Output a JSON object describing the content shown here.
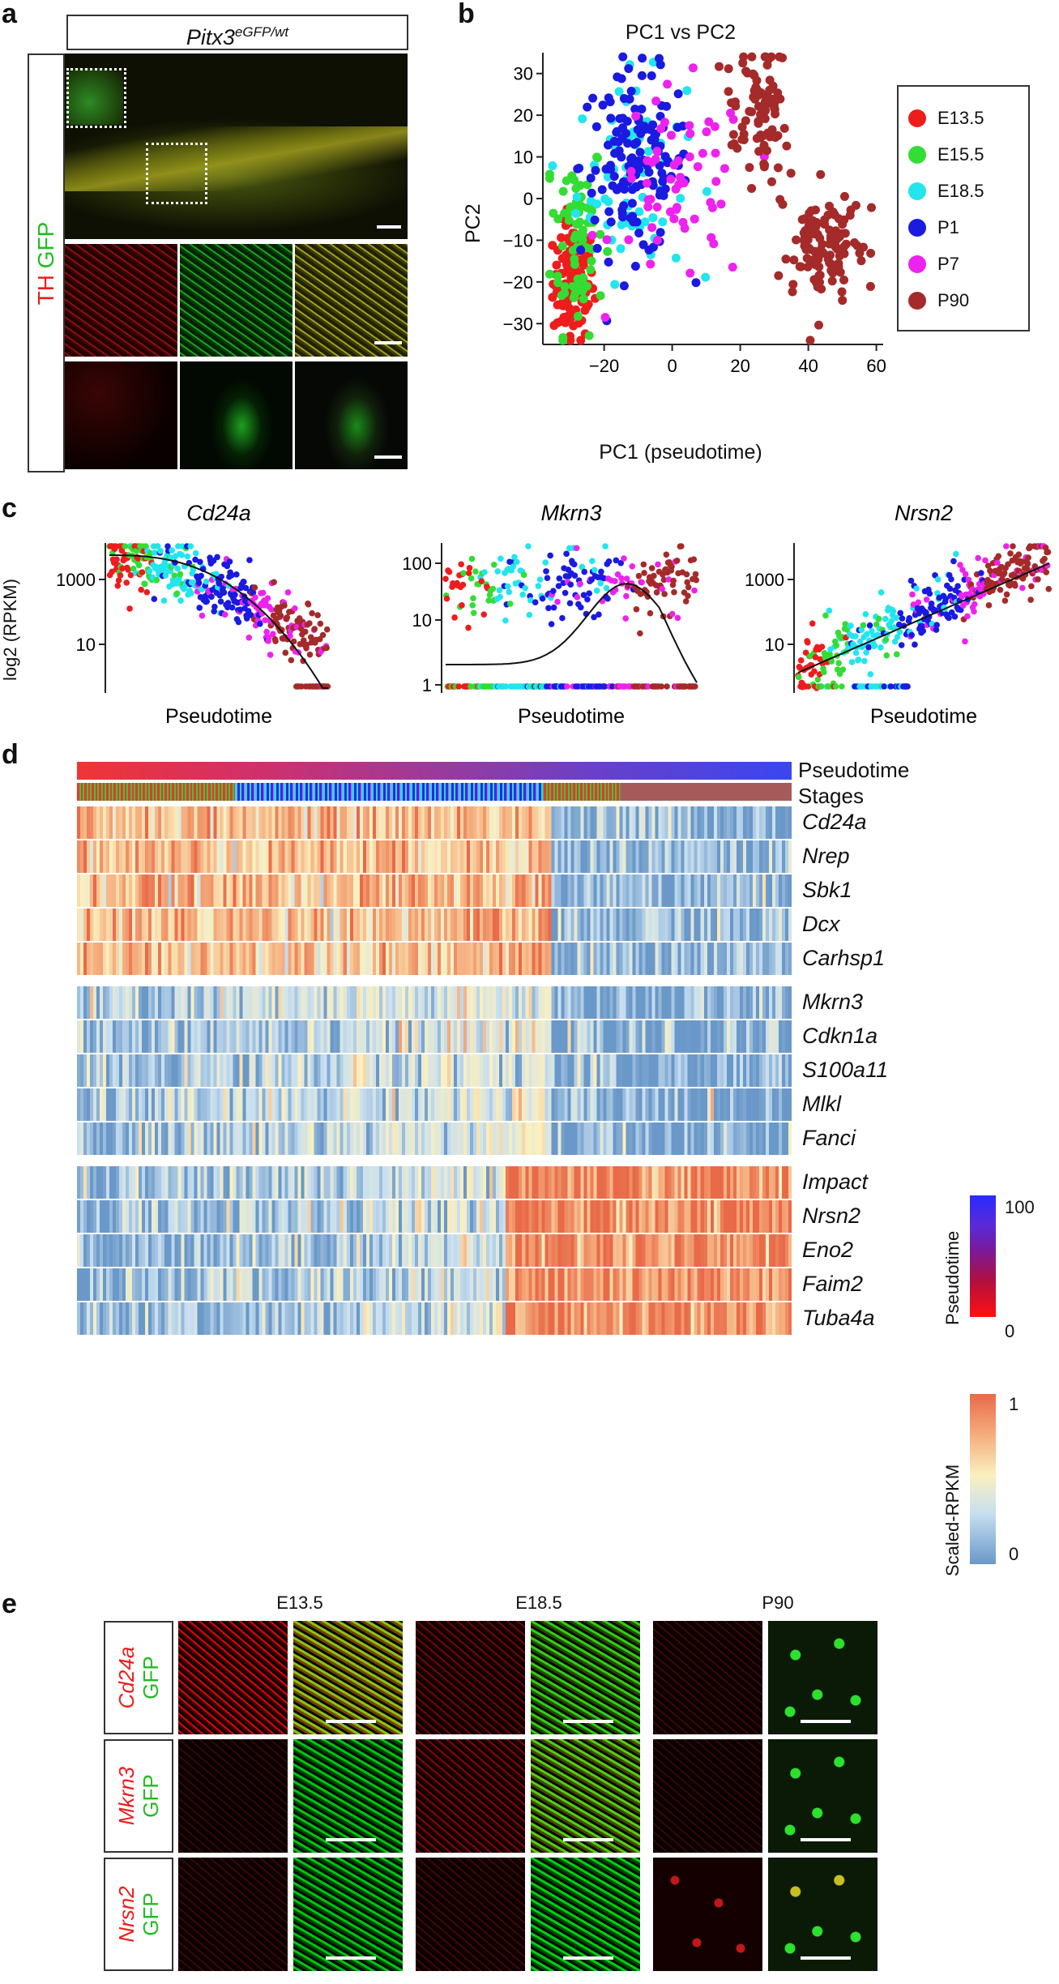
{
  "panel_letters": {
    "a": "a",
    "b": "b",
    "c": "c",
    "d": "d",
    "e": "e"
  },
  "panel_a": {
    "title_main": "Pitx3",
    "title_sup": "eGFP/wt",
    "side_th": "TH",
    "side_gfp": "GFP"
  },
  "panel_b": {
    "title": "PC1 vs PC2",
    "xlabel": "PC1 (pseudotime)",
    "ylabel": "PC2",
    "xticks": [
      "−20",
      "0",
      "20",
      "40",
      "60"
    ],
    "yticks": [
      "30",
      "20",
      "10",
      "0",
      "−10",
      "−20",
      "−30"
    ],
    "legend": [
      {
        "name": "E13.5",
        "color": "#ee1c1c"
      },
      {
        "name": "E15.5",
        "color": "#33dd33"
      },
      {
        "name": "E18.5",
        "color": "#22e5ee"
      },
      {
        "name": "P1",
        "color": "#1a1ae0"
      },
      {
        "name": "P7",
        "color": "#ee22ee"
      },
      {
        "name": "P90",
        "color": "#a52a2a"
      }
    ]
  },
  "panel_c": {
    "ylabel": "log2 (RPKM)",
    "plots": [
      {
        "gene": "Cd24a",
        "xlabel": "Pseudotime",
        "yticks": [
          "1000",
          "10"
        ]
      },
      {
        "gene": "Mkrn3",
        "xlabel": "Pseudotime",
        "yticks": [
          "100",
          "10",
          "1"
        ]
      },
      {
        "gene": "Nrsn2",
        "xlabel": "Pseudotime",
        "yticks": [
          "1000",
          "10"
        ]
      }
    ]
  },
  "panel_d": {
    "bar_pseudotime": "Pseudotime",
    "bar_stages": "Stages",
    "genes": [
      "Cd24a",
      "Nrep",
      "Sbk1",
      "Dcx",
      "Carhsp1",
      "Mkrn3",
      "Cdkn1a",
      "S100a11",
      "Mlkl",
      "Fanci",
      "Impact",
      "Nrsn2",
      "Eno2",
      "Faim2",
      "Tuba4a"
    ],
    "legend_pseudotime": {
      "label": "Pseudotime",
      "max": "100",
      "min": "0"
    },
    "legend_scaled": {
      "label": "Scaled-RPKM",
      "max": "1",
      "min": "0"
    }
  },
  "panel_e": {
    "columns": [
      "E13.5",
      "E18.5",
      "P90"
    ],
    "rows": [
      {
        "gene": "Cd24a",
        "marker": "GFP"
      },
      {
        "gene": "Mkrn3",
        "marker": "GFP"
      },
      {
        "gene": "Nrsn2",
        "marker": "GFP"
      }
    ]
  },
  "chart_data": [
    {
      "type": "scatter",
      "title": "PC1 vs PC2",
      "xlabel": "PC1 (pseudotime)",
      "ylabel": "PC2",
      "xlim": [
        -38,
        62
      ],
      "ylim": [
        -35,
        35
      ],
      "series": [
        {
          "name": "E13.5",
          "color": "#ee1c1c",
          "cluster": {
            "cx": -29,
            "cy": -20,
            "sx": 3,
            "sy": 7
          }
        },
        {
          "name": "E15.5",
          "color": "#33dd33",
          "cluster": {
            "cx": -28,
            "cy": -8,
            "sx": 4,
            "sy": 12
          }
        },
        {
          "name": "E18.5",
          "color": "#22e5ee",
          "cluster": {
            "cx": -12,
            "cy": 5,
            "sx": 8,
            "sy": 12
          }
        },
        {
          "name": "P1",
          "color": "#1a1ae0",
          "cluster": {
            "cx": -11,
            "cy": 8,
            "sx": 8,
            "sy": 11
          }
        },
        {
          "name": "P7",
          "color": "#ee22ee",
          "cluster": {
            "cx": 3,
            "cy": 2,
            "sx": 10,
            "sy": 12
          }
        },
        {
          "name": "P90",
          "color": "#a52a2a",
          "cluster": {
            "cx": 38,
            "cy": 2,
            "sx": 10,
            "sy": 15
          }
        }
      ]
    }
  ]
}
